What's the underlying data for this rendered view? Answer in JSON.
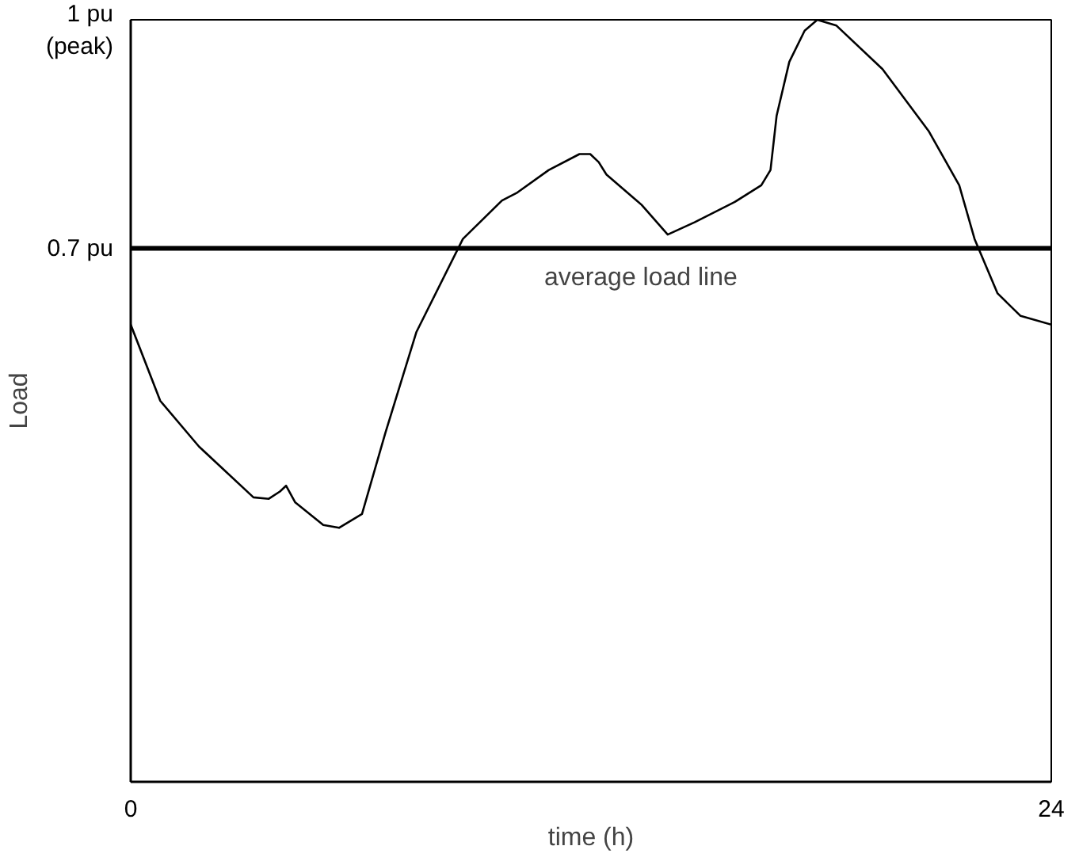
{
  "chart_data": {
    "type": "line",
    "xlabel": "time (h)",
    "ylabel": "Load",
    "x": [
      0,
      0.77,
      1.78,
      3.2,
      3.6,
      3.89,
      4.05,
      4.29,
      5.02,
      5.43,
      6.03,
      6.64,
      7.45,
      8.66,
      9.68,
      10.08,
      10.9,
      11.7,
      11.98,
      12.2,
      12.4,
      13.32,
      14.0,
      14.7,
      15.75,
      16.44,
      16.68,
      16.84,
      17.17,
      17.57,
      17.9,
      18.4,
      19.6,
      20.8,
      21.6,
      22.0,
      22.6,
      23.2,
      24
    ],
    "series": [
      {
        "color": "#000000",
        "values": [
          0.595,
          0.49,
          0.427,
          0.357,
          0.355,
          0.365,
          0.373,
          0.35,
          0.319,
          0.315,
          0.334,
          0.446,
          0.585,
          0.713,
          0.766,
          0.777,
          0.808,
          0.83,
          0.83,
          0.819,
          0.802,
          0.76,
          0.719,
          0.736,
          0.764,
          0.787,
          0.808,
          0.883,
          0.957,
          1.0,
          1.015,
          1.007,
          0.947,
          0.862,
          0.787,
          0.713,
          0.638,
          0.607,
          0.595
        ]
      }
    ],
    "xlim": [
      0,
      24
    ],
    "ylim": [
      -0.035,
      1.015
    ],
    "xticks": [
      0,
      24
    ],
    "yticks": [
      {
        "value": 0.7,
        "label": "0.7 pu"
      },
      {
        "value": 1,
        "label": "1 pu\n(peak)"
      }
    ],
    "ref_lines": [
      {
        "axis": "y",
        "value": 0.7,
        "label": "average load line",
        "color": "#000000"
      }
    ],
    "line_style": "solid"
  }
}
